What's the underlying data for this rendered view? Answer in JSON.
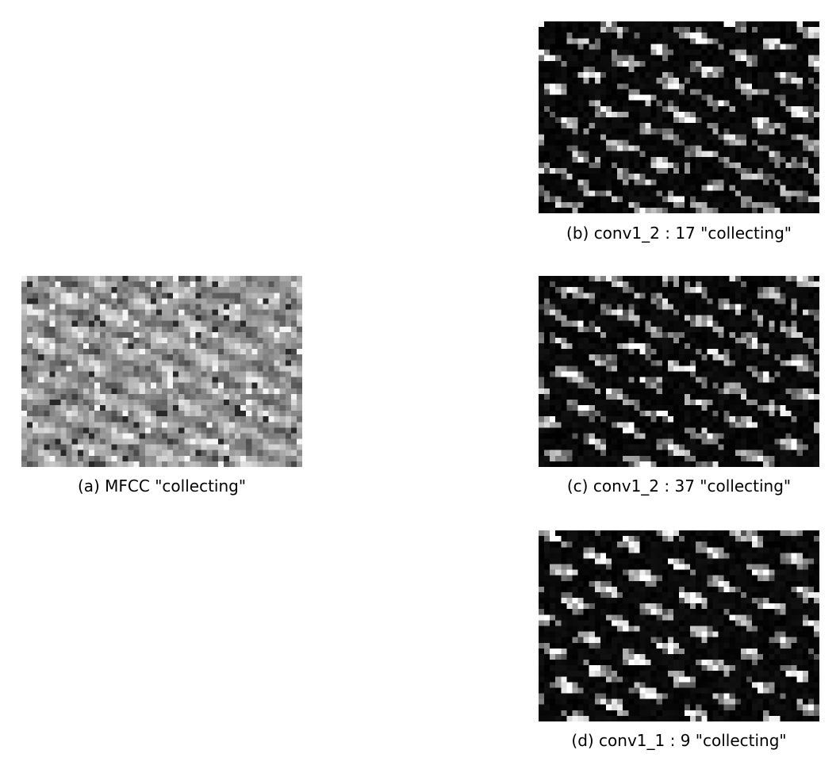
{
  "figure": {
    "panels": [
      {
        "id": "a",
        "caption": "(a) MFCC \"collecting\"",
        "kind": "mfcc",
        "seed": 11,
        "cols": 50,
        "rows": 34
      },
      {
        "id": "b",
        "caption": "(b) conv1_2 : 17 \"collecting\"",
        "kind": "activation",
        "seed": 23,
        "cols": 50,
        "rows": 34
      },
      {
        "id": "c",
        "caption": "(c) conv1_2 : 37 \"collecting\"",
        "kind": "activation",
        "seed": 37,
        "cols": 50,
        "rows": 34
      },
      {
        "id": "d",
        "caption": "(d) conv1_1 : 9 \"collecting\"",
        "kind": "activation",
        "seed": 9,
        "cols": 50,
        "rows": 34
      }
    ]
  }
}
